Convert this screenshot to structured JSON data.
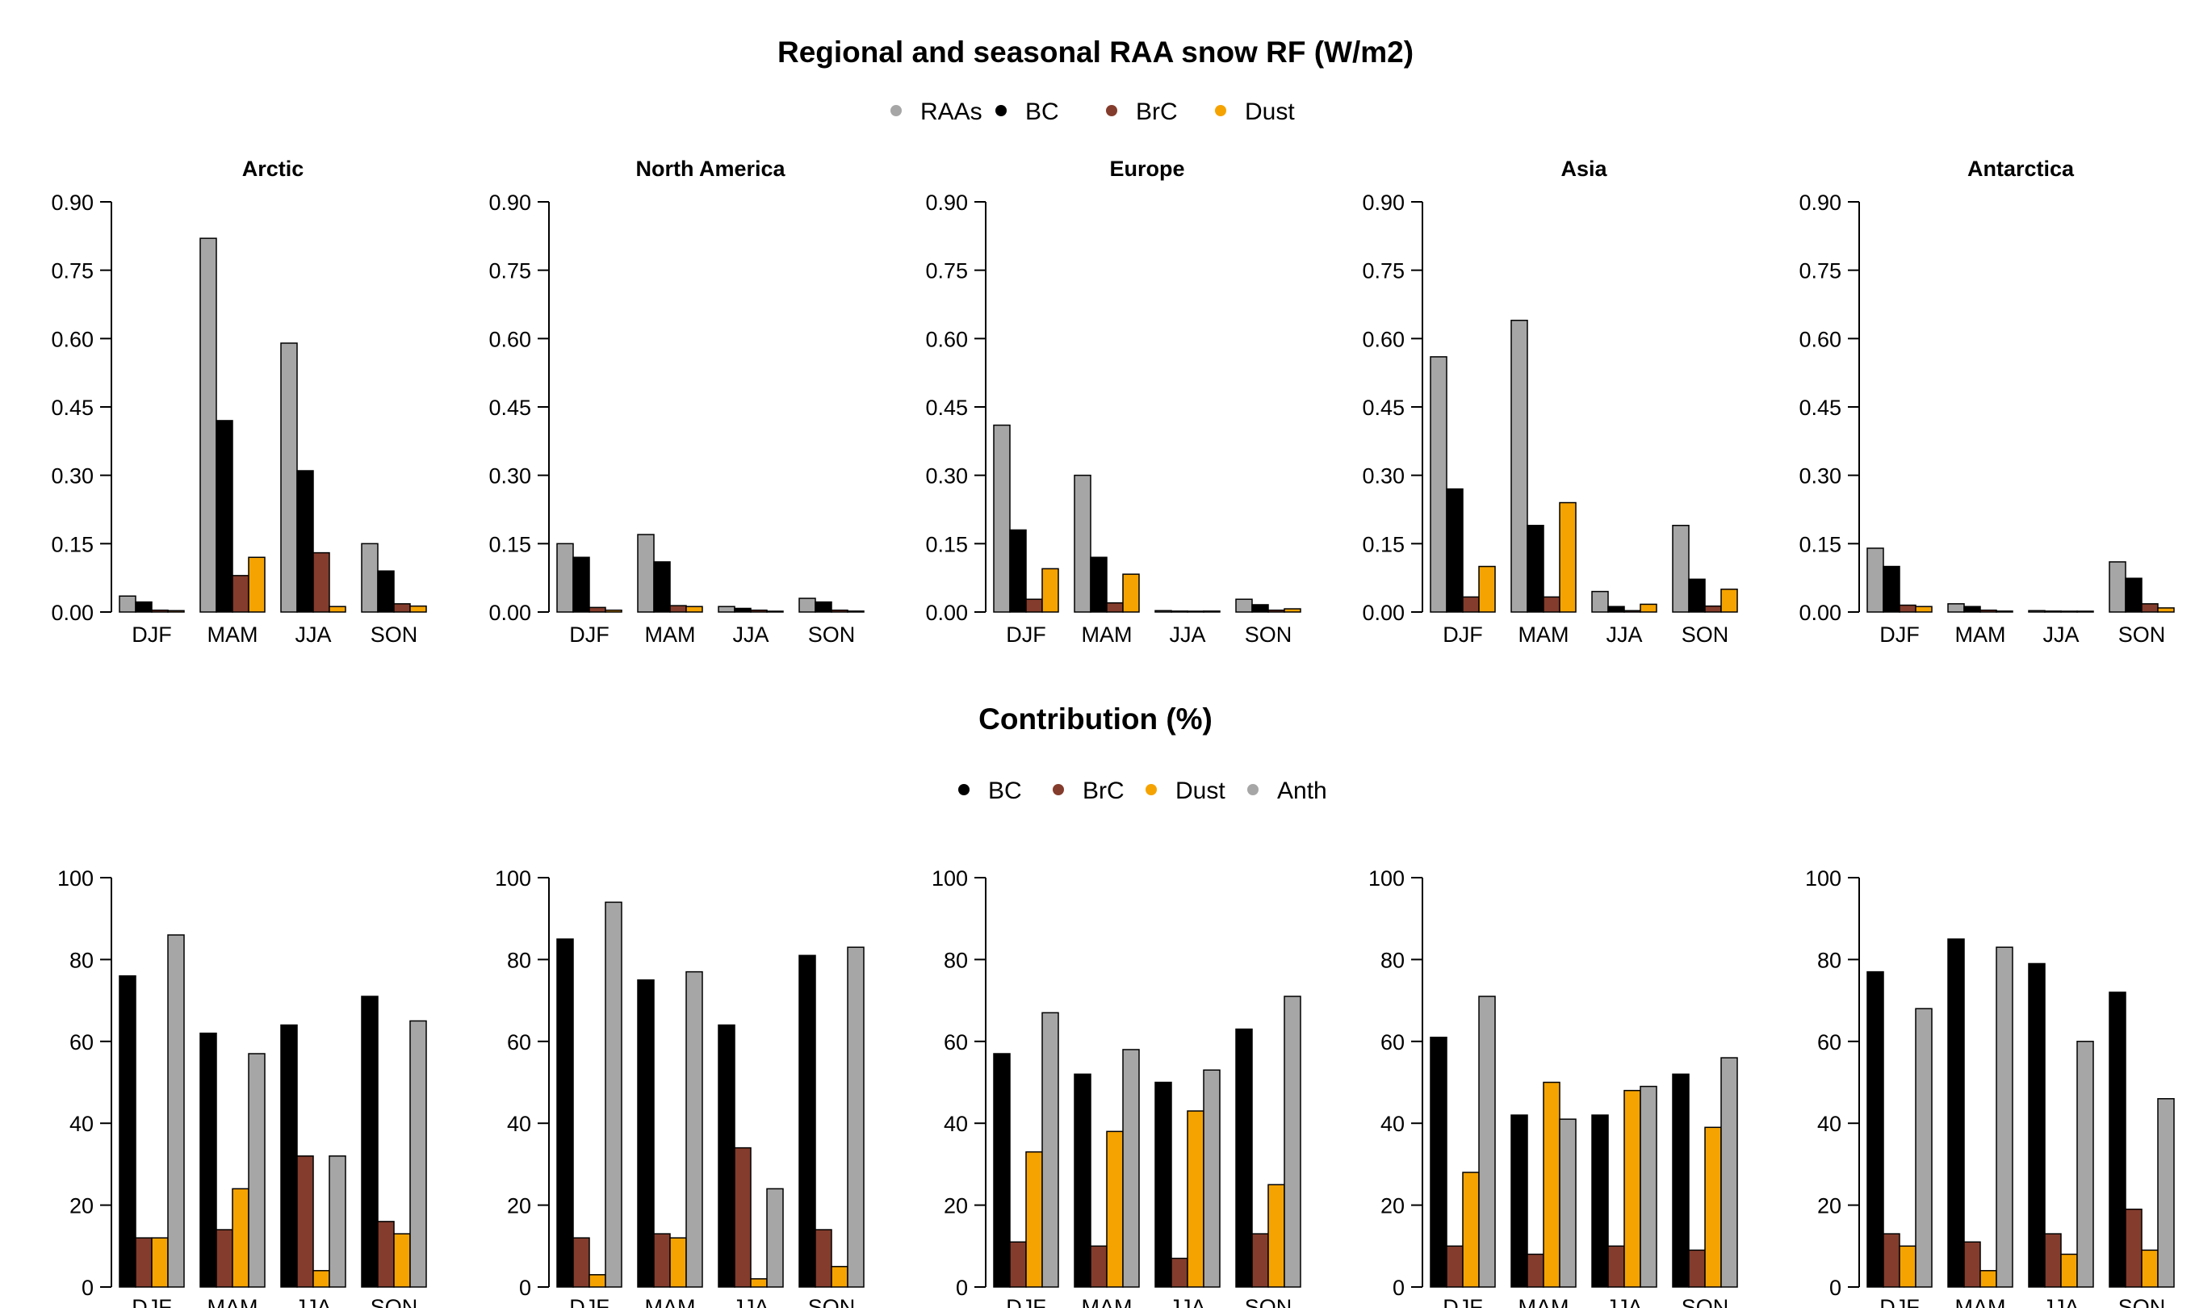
{
  "chart_data": [
    {
      "type": "bar",
      "title": "Regional and seasonal RAA snow RF (W/m2)",
      "legend": [
        {
          "name": "RAAs",
          "color": "#A6A6A6"
        },
        {
          "name": "BC",
          "color": "#000000"
        },
        {
          "name": "BrC",
          "color": "#843C2C"
        },
        {
          "name": "Dust",
          "color": "#F5A300"
        }
      ],
      "legend_position": "top-center",
      "categories": [
        "DJF",
        "MAM",
        "JJA",
        "SON"
      ],
      "ylim": [
        0,
        0.9
      ],
      "yticks": [
        "0.00",
        "0.15",
        "0.30",
        "0.45",
        "0.60",
        "0.75",
        "0.90"
      ],
      "panels": [
        {
          "title": "Arctic",
          "series": [
            {
              "name": "RAAs",
              "values": [
                0.035,
                0.82,
                0.59,
                0.15
              ]
            },
            {
              "name": "BC",
              "values": [
                0.022,
                0.42,
                0.31,
                0.09
              ]
            },
            {
              "name": "BrC",
              "values": [
                0.004,
                0.08,
                0.13,
                0.018
              ]
            },
            {
              "name": "Dust",
              "values": [
                0.003,
                0.12,
                0.012,
                0.013
              ]
            }
          ]
        },
        {
          "title": "North America",
          "series": [
            {
              "name": "RAAs",
              "values": [
                0.15,
                0.17,
                0.012,
                0.03
              ]
            },
            {
              "name": "BC",
              "values": [
                0.12,
                0.11,
                0.008,
                0.022
              ]
            },
            {
              "name": "BrC",
              "values": [
                0.01,
                0.014,
                0.004,
                0.004
              ]
            },
            {
              "name": "Dust",
              "values": [
                0.004,
                0.012,
                0.001,
                0.002
              ]
            }
          ]
        },
        {
          "title": "Europe",
          "series": [
            {
              "name": "RAAs",
              "values": [
                0.41,
                0.3,
                0.003,
                0.028
              ]
            },
            {
              "name": "BC",
              "values": [
                0.18,
                0.12,
                0.002,
                0.016
              ]
            },
            {
              "name": "BrC",
              "values": [
                0.028,
                0.02,
                0.001,
                0.004
              ]
            },
            {
              "name": "Dust",
              "values": [
                0.095,
                0.083,
                0.002,
                0.007
              ]
            }
          ]
        },
        {
          "title": "Asia",
          "series": [
            {
              "name": "RAAs",
              "values": [
                0.56,
                0.64,
                0.045,
                0.19
              ]
            },
            {
              "name": "BC",
              "values": [
                0.27,
                0.19,
                0.012,
                0.072
              ]
            },
            {
              "name": "BrC",
              "values": [
                0.033,
                0.033,
                0.003,
                0.013
              ]
            },
            {
              "name": "Dust",
              "values": [
                0.1,
                0.24,
                0.017,
                0.05
              ]
            }
          ]
        },
        {
          "title": "Antarctica",
          "series": [
            {
              "name": "RAAs",
              "values": [
                0.14,
                0.018,
                0.003,
                0.11
              ]
            },
            {
              "name": "BC",
              "values": [
                0.1,
                0.012,
                0.002,
                0.074
              ]
            },
            {
              "name": "BrC",
              "values": [
                0.015,
                0.004,
                0.001,
                0.018
              ]
            },
            {
              "name": "Dust",
              "values": [
                0.012,
                0.002,
                0.0005,
                0.009
              ]
            }
          ]
        }
      ]
    },
    {
      "type": "bar",
      "title": "Contribution (%)",
      "legend": [
        {
          "name": "BC",
          "color": "#000000"
        },
        {
          "name": "BrC",
          "color": "#843C2C"
        },
        {
          "name": "Dust",
          "color": "#F5A300"
        },
        {
          "name": "Anth",
          "color": "#A6A6A6"
        }
      ],
      "legend_position": "top-center",
      "categories": [
        "DJF",
        "MAM",
        "JJA",
        "SON"
      ],
      "ylim": [
        0,
        100
      ],
      "yticks": [
        "0",
        "20",
        "40",
        "60",
        "80",
        "100"
      ],
      "panels": [
        {
          "series": [
            {
              "name": "BC",
              "values": [
                76,
                62,
                64,
                71
              ]
            },
            {
              "name": "BrC",
              "values": [
                12,
                14,
                32,
                16
              ]
            },
            {
              "name": "Dust",
              "values": [
                12,
                24,
                4,
                13
              ]
            },
            {
              "name": "Anth",
              "values": [
                86,
                57,
                32,
                65
              ]
            }
          ]
        },
        {
          "series": [
            {
              "name": "BC",
              "values": [
                85,
                75,
                64,
                81
              ]
            },
            {
              "name": "BrC",
              "values": [
                12,
                13,
                34,
                14
              ]
            },
            {
              "name": "Dust",
              "values": [
                3,
                12,
                2,
                5
              ]
            },
            {
              "name": "Anth",
              "values": [
                94,
                77,
                24,
                83
              ]
            }
          ]
        },
        {
          "series": [
            {
              "name": "BC",
              "values": [
                57,
                52,
                50,
                63
              ]
            },
            {
              "name": "BrC",
              "values": [
                11,
                10,
                7,
                13
              ]
            },
            {
              "name": "Dust",
              "values": [
                33,
                38,
                43,
                25
              ]
            },
            {
              "name": "Anth",
              "values": [
                67,
                58,
                53,
                71
              ]
            }
          ]
        },
        {
          "series": [
            {
              "name": "BC",
              "values": [
                61,
                42,
                42,
                52
              ]
            },
            {
              "name": "BrC",
              "values": [
                10,
                8,
                10,
                9
              ]
            },
            {
              "name": "Dust",
              "values": [
                28,
                50,
                48,
                39
              ]
            },
            {
              "name": "Anth",
              "values": [
                71,
                41,
                49,
                56
              ]
            }
          ]
        },
        {
          "series": [
            {
              "name": "BC",
              "values": [
                77,
                85,
                79,
                72
              ]
            },
            {
              "name": "BrC",
              "values": [
                13,
                11,
                13,
                19
              ]
            },
            {
              "name": "Dust",
              "values": [
                10,
                4,
                8,
                9
              ]
            },
            {
              "name": "Anth",
              "values": [
                68,
                83,
                60,
                46
              ]
            }
          ]
        }
      ]
    }
  ]
}
